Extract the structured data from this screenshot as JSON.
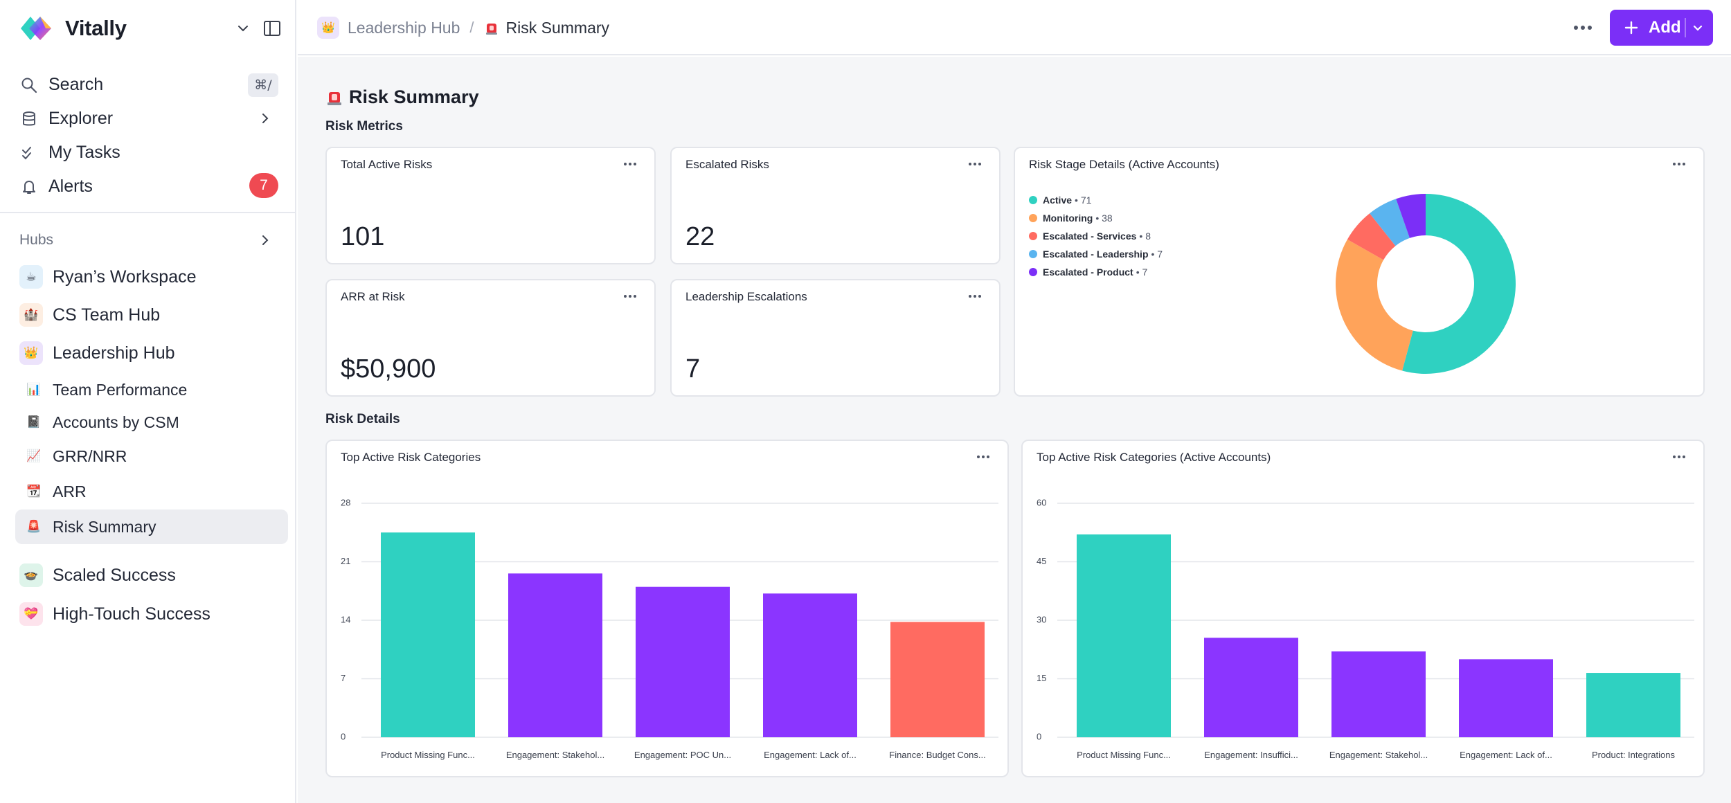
{
  "app": {
    "name": "Vitally"
  },
  "sidebar": {
    "nav": [
      {
        "label": "Search",
        "icon": "search-icon",
        "shortcut": "⌘/"
      },
      {
        "label": "Explorer",
        "icon": "database-icon"
      },
      {
        "label": "My Tasks",
        "icon": "checks-icon"
      },
      {
        "label": "Alerts",
        "icon": "bell-icon",
        "badge": "7"
      }
    ],
    "hubs_label": "Hubs",
    "hubs": [
      {
        "label": "Ryan’s Workspace",
        "emoji": "☕",
        "bg": "#e3f1fb"
      },
      {
        "label": "CS Team Hub",
        "emoji": "🏰",
        "bg": "#fdeee2"
      },
      {
        "label": "Leadership Hub",
        "emoji": "👑",
        "bg": "#ece3fb"
      }
    ],
    "sub_items": [
      {
        "label": "Team Performance",
        "emoji": "📊"
      },
      {
        "label": "Accounts by CSM",
        "emoji": "📓"
      },
      {
        "label": "GRR/NRR",
        "emoji": "📈"
      },
      {
        "label": "ARR",
        "emoji": "📆"
      },
      {
        "label": "Risk Summary",
        "emoji": "🚨"
      }
    ],
    "hubs_after": [
      {
        "label": "Scaled Success",
        "emoji": "🍲",
        "bg": "#def4ea"
      },
      {
        "label": "High-Touch Success",
        "emoji": "💝",
        "bg": "#fde3ec"
      }
    ]
  },
  "topbar": {
    "breadcrumb_parent": "Leadership Hub",
    "breadcrumb_parent_emoji": "👑",
    "breadcrumb_sep": "/",
    "breadcrumb_current": "Risk Summary",
    "add_label": "Add"
  },
  "page": {
    "title": "Risk Summary",
    "section_metrics": "Risk Metrics",
    "section_details": "Risk Details"
  },
  "metrics": [
    {
      "title": "Total Active Risks",
      "value": "101"
    },
    {
      "title": "Escalated Risks",
      "value": "22"
    },
    {
      "title": "ARR at Risk",
      "value": "$50,900"
    },
    {
      "title": "Leadership Escalations",
      "value": "7"
    }
  ],
  "colors": {
    "accent": "#7b2ff7",
    "teal": "#2fd1c1",
    "purple": "#8b35ff",
    "coral": "#ff6b61",
    "orange": "#ffa35a",
    "blue": "#5ab4ef",
    "alert": "#ef4a52"
  },
  "chart_data": [
    {
      "type": "pie",
      "title": "Risk Stage Details (Active Accounts)",
      "legend_position": "left",
      "slices": [
        {
          "label": "Active",
          "value": 71,
          "color": "#2fd1c1"
        },
        {
          "label": "Monitoring",
          "value": 38,
          "color": "#ffa35a"
        },
        {
          "label": "Escalated - Services",
          "value": 8,
          "color": "#ff6b61"
        },
        {
          "label": "Escalated - Leadership",
          "value": 7,
          "color": "#5ab4ef"
        },
        {
          "label": "Escalated - Product",
          "value": 7,
          "color": "#7b2ff7"
        }
      ]
    },
    {
      "type": "bar",
      "title": "Top Active Risk Categories",
      "categories": [
        "Product Missing Func...",
        "Engagement: Stakehol...",
        "Engagement: POC Un...",
        "Engagement: Lack of...",
        "Finance: Budget Cons..."
      ],
      "values": [
        24.5,
        19.6,
        18,
        17.2,
        13.8
      ],
      "colors": [
        "#2fd1c1",
        "#8b35ff",
        "#8b35ff",
        "#8b35ff",
        "#ff6b61"
      ],
      "yticks": [
        0,
        7,
        14,
        21,
        28
      ],
      "ylim": [
        0,
        28
      ],
      "grid": true
    },
    {
      "type": "bar",
      "title": "Top Active Risk Categories (Active Accounts)",
      "categories": [
        "Product Missing Func...",
        "Engagement: Insuffici...",
        "Engagement: Stakehol...",
        "Engagement: Lack of...",
        "Product: Integrations"
      ],
      "values": [
        52,
        25.5,
        22,
        20,
        16.5
      ],
      "colors": [
        "#2fd1c1",
        "#8b35ff",
        "#8b35ff",
        "#8b35ff",
        "#2fd1c1"
      ],
      "yticks": [
        0,
        15,
        30,
        45,
        60
      ],
      "ylim": [
        0,
        60
      ],
      "grid": true
    }
  ]
}
